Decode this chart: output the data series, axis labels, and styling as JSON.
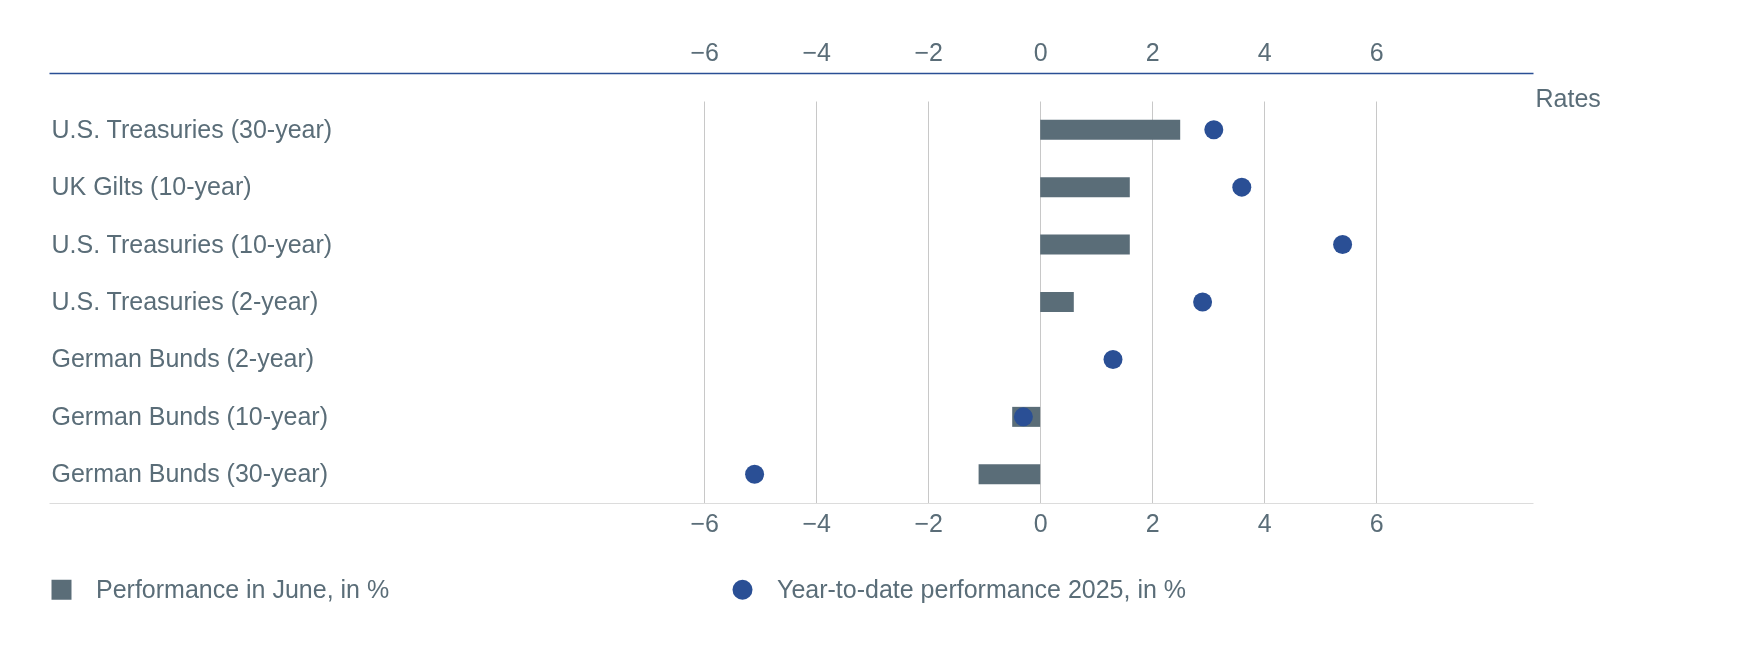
{
  "chart_data": {
    "type": "bar",
    "orientation": "horizontal",
    "xlabel": "Rates",
    "categories": [
      "U.S. Treasuries (30-year)",
      "UK Gilts (10-year)",
      "U.S. Treasuries (10-year)",
      "U.S. Treasuries (2-year)",
      "German Bunds (2-year)",
      "German Bunds (10-year)",
      "German Bunds (30-year)"
    ],
    "series": [
      {
        "name": "Performance in June, in %",
        "color": "#5a6d78",
        "values": [
          2.5,
          1.6,
          1.6,
          0.6,
          0,
          -0.5,
          -1.1
        ]
      },
      {
        "name": "Year-to-date performance 2025, in %",
        "type": "scatter",
        "color": "#2a4f95",
        "values": [
          3.1,
          3.6,
          5.4,
          2.9,
          1.3,
          -0.3,
          -5.1
        ]
      }
    ],
    "xlim": [
      -17.7,
      8.8
    ],
    "xticks": [
      -6,
      -4,
      -2,
      0,
      2,
      4,
      6
    ],
    "x2lim": [
      -17.7,
      8.8
    ],
    "x2ticks": [
      -6,
      -4,
      -2,
      0,
      2,
      4,
      6
    ],
    "grid": "x",
    "legend": "bottom",
    "marker": "circle"
  }
}
